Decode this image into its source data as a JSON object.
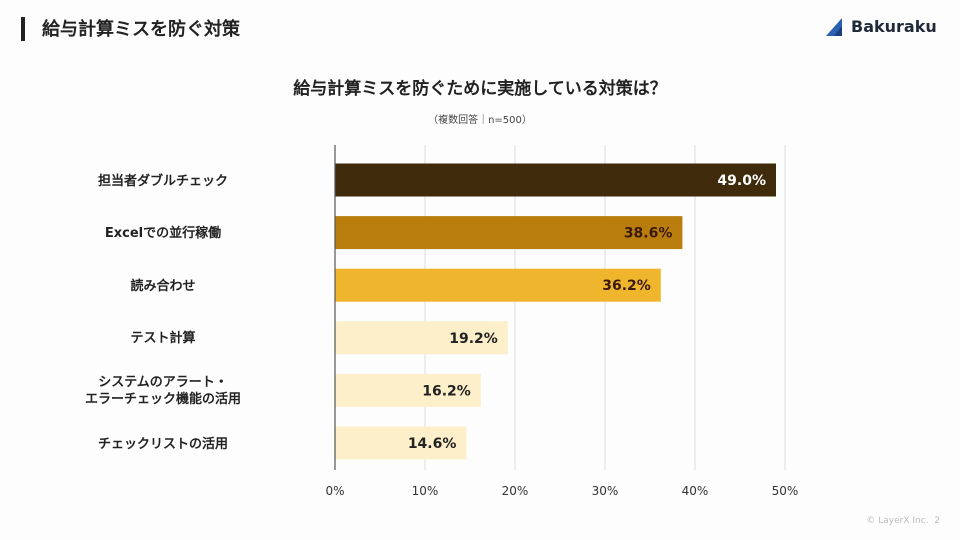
{
  "header": {
    "title": "給与計算ミスを防ぐ対策"
  },
  "logo": {
    "text": "Bakuraku",
    "icon": "bakuraku-triangle-icon",
    "color": "#2b5fb0"
  },
  "footer": {
    "copyright": "© LayerX Inc.",
    "page": "2"
  },
  "chart_data": {
    "type": "bar",
    "orientation": "horizontal",
    "title": "給与計算ミスを防ぐためにた実施している対策は？",
    "subtitle": "（複数回答｜n=500）",
    "categories": [
      "担当者ダブルチェック",
      "Excelでの並行稼働",
      "読み合わせ",
      "テスト計算",
      "システムのアラート・\nエラーチェック機能の活用",
      "チェックリストの活用"
    ],
    "values": [
      49.0,
      38.6,
      36.2,
      19.2,
      16.2,
      14.6
    ],
    "data_labels": [
      "49.0%",
      "38.6%",
      "36.2%",
      "19.2%",
      "16.2%",
      "14.6%"
    ],
    "colors": [
      "#3f2a0c",
      "#b97d0d",
      "#efb52d",
      "#fcefc9",
      "#fcefc9",
      "#fcefc9"
    ],
    "label_colors": [
      "#ffffff",
      "#3a1a10",
      "#3a1a10",
      "#222222",
      "#222222",
      "#222222"
    ],
    "xlim": [
      0,
      50
    ],
    "xticks": [
      "0%",
      "10%",
      "20%",
      "30%",
      "40%",
      "50%"
    ],
    "grid": true
  }
}
